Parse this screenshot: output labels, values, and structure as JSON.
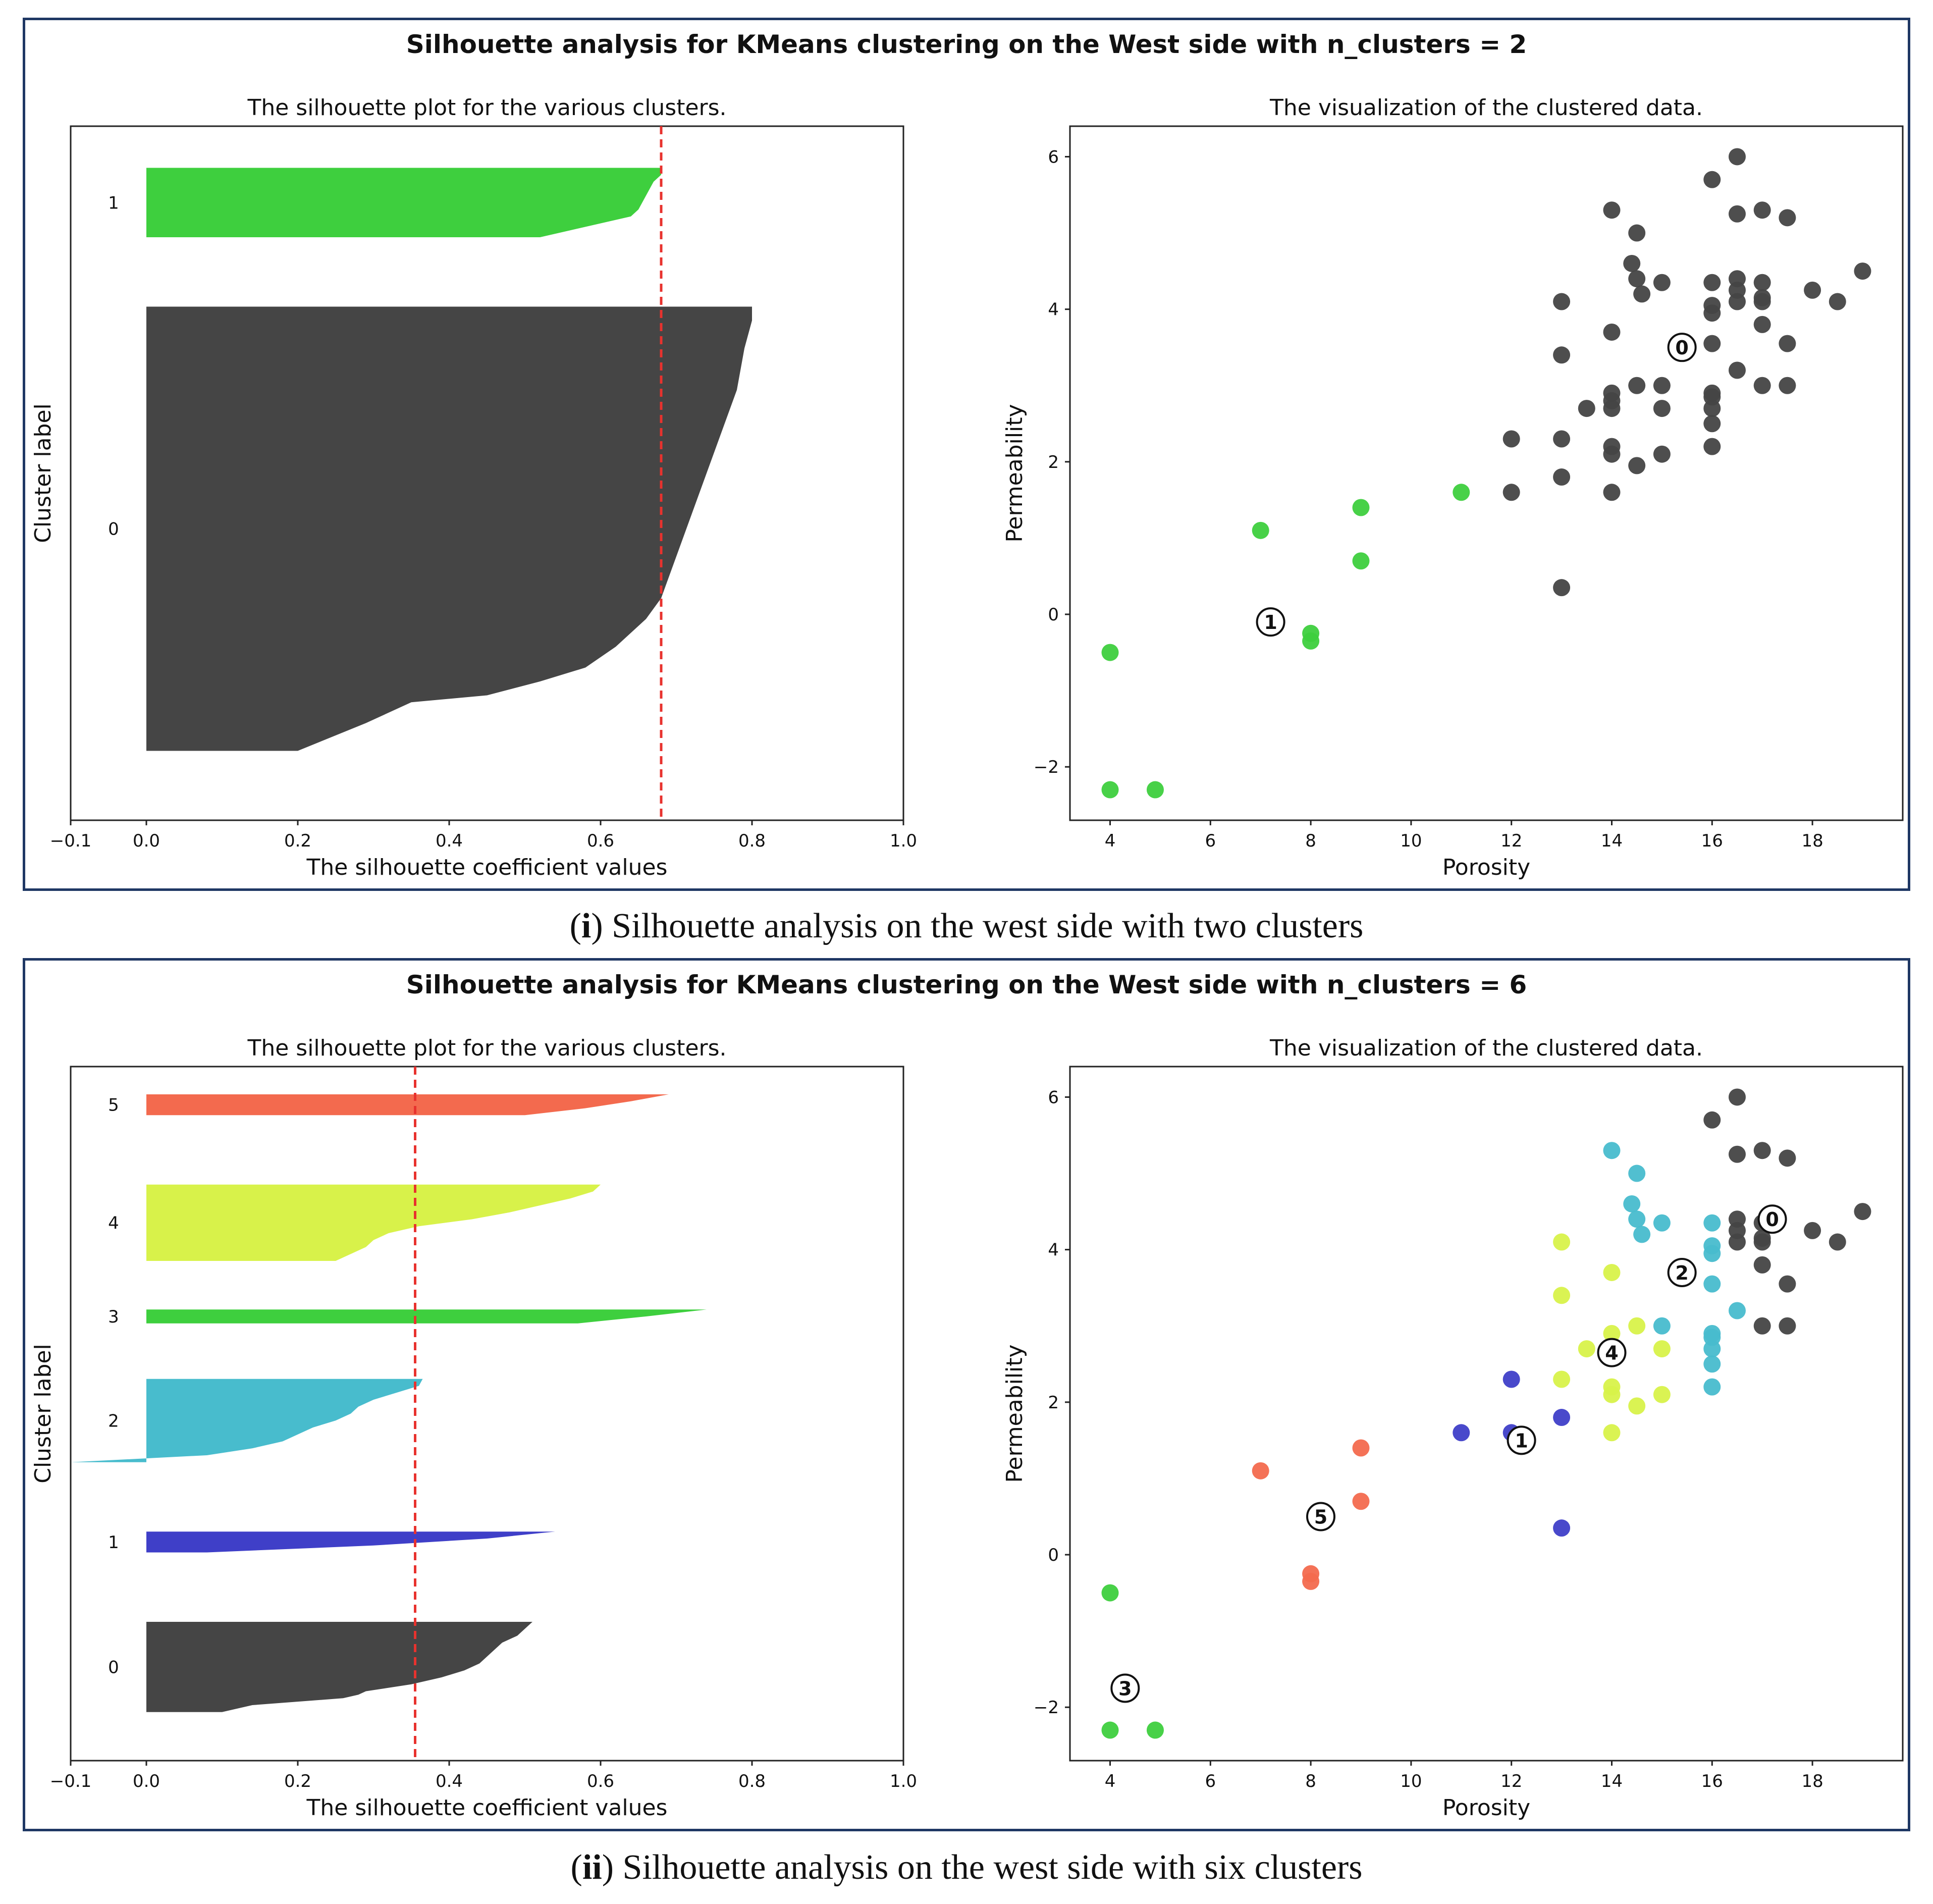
{
  "colors": {
    "c0": "#454545",
    "c1_two": "#3ecf3e",
    "c1_six": "#3f3fc8",
    "c2": "#48bccd",
    "c3": "#3ecf3e",
    "c4": "#d8f24a",
    "c5": "#f36a4e",
    "avg_line": "#e8322e",
    "frame": "#1f3864"
  },
  "captions": [
    {
      "label": "i",
      "text": " Silhouette analysis on the west side with two clusters"
    },
    {
      "label": "ii",
      "text": " Silhouette analysis on the west side with six clusters"
    }
  ],
  "chart_data": [
    {
      "type": "silhouette",
      "title": "Silhouette analysis for KMeans clustering on the West side with n_clusters = 2",
      "subtitle": "The silhouette plot for the various clusters.",
      "xlabel": "The silhouette coefficient values",
      "ylabel": "Cluster label",
      "xlim": [
        -0.1,
        1.0
      ],
      "xticks": [
        "−0.1",
        "0.0",
        "0.2",
        "0.4",
        "0.6",
        "0.8",
        "1.0"
      ],
      "xtick_values": [
        -0.1,
        0.0,
        0.2,
        0.4,
        0.6,
        0.8,
        1.0
      ],
      "average_score": 0.68,
      "clusters": [
        {
          "label": "0",
          "color": "c0",
          "y_range": [
            10,
            74
          ],
          "profile": [
            [
              10,
              0.2
            ],
            [
              14,
              0.29
            ],
            [
              17,
              0.35
            ],
            [
              18,
              0.45
            ],
            [
              20,
              0.52
            ],
            [
              22,
              0.58
            ],
            [
              25,
              0.62
            ],
            [
              29,
              0.66
            ],
            [
              32,
              0.68
            ],
            [
              38,
              0.7
            ],
            [
              44,
              0.72
            ],
            [
              50,
              0.74
            ],
            [
              56,
              0.76
            ],
            [
              62,
              0.78
            ],
            [
              68,
              0.79
            ],
            [
              72,
              0.8
            ],
            [
              74,
              0.8
            ]
          ]
        },
        {
          "label": "1",
          "color": "c1_two",
          "y_range": [
            84,
            94
          ],
          "profile": [
            [
              84,
              0.52
            ],
            [
              85,
              0.56
            ],
            [
              86,
              0.6
            ],
            [
              87,
              0.64
            ],
            [
              88,
              0.65
            ],
            [
              90,
              0.66
            ],
            [
              92,
              0.67
            ],
            [
              93,
              0.68
            ],
            [
              94,
              0.68
            ]
          ]
        }
      ]
    },
    {
      "type": "scatter",
      "title": "",
      "subtitle": "The visualization of the clustered data.",
      "xlabel": "Porosity",
      "ylabel": "Permeability",
      "xlim": [
        3.2,
        19.8
      ],
      "ylim": [
        -2.7,
        6.4
      ],
      "xticks": [
        "4",
        "6",
        "8",
        "10",
        "12",
        "14",
        "16",
        "18"
      ],
      "xtick_values": [
        4,
        6,
        8,
        10,
        12,
        14,
        16,
        18
      ],
      "yticks": [
        "−2",
        "0",
        "2",
        "4",
        "6"
      ],
      "ytick_values": [
        -2,
        0,
        2,
        4,
        6
      ],
      "centers": [
        {
          "label": "0",
          "x": 15.4,
          "y": 3.5
        },
        {
          "label": "1",
          "x": 7.2,
          "y": -0.1
        }
      ],
      "series": [
        {
          "name": "0",
          "color": "c0",
          "points": [
            [
              12,
              2.3
            ],
            [
              12,
              1.6
            ],
            [
              13,
              4.1
            ],
            [
              13,
              3.4
            ],
            [
              13,
              2.3
            ],
            [
              13,
              1.8
            ],
            [
              13,
              0.35
            ],
            [
              13.5,
              2.7
            ],
            [
              14,
              5.3
            ],
            [
              14,
              3.7
            ],
            [
              14,
              2.9
            ],
            [
              14,
              2.8
            ],
            [
              14,
              2.7
            ],
            [
              14,
              2.2
            ],
            [
              14,
              2.1
            ],
            [
              14,
              1.6
            ],
            [
              14.4,
              4.6
            ],
            [
              14.5,
              4.4
            ],
            [
              14.5,
              5.0
            ],
            [
              14.5,
              3.0
            ],
            [
              14.5,
              1.95
            ],
            [
              14.6,
              4.2
            ],
            [
              15,
              4.35
            ],
            [
              15,
              3.0
            ],
            [
              15,
              2.7
            ],
            [
              15,
              2.1
            ],
            [
              16,
              5.7
            ],
            [
              16,
              4.35
            ],
            [
              16,
              4.05
            ],
            [
              16,
              3.95
            ],
            [
              16,
              3.55
            ],
            [
              16,
              2.9
            ],
            [
              16,
              2.85
            ],
            [
              16,
              2.7
            ],
            [
              16,
              2.5
            ],
            [
              16,
              2.2
            ],
            [
              16.5,
              6.0
            ],
            [
              16.5,
              5.25
            ],
            [
              16.5,
              4.4
            ],
            [
              16.5,
              4.25
            ],
            [
              16.5,
              4.1
            ],
            [
              16.5,
              3.2
            ],
            [
              17,
              5.3
            ],
            [
              17,
              4.35
            ],
            [
              17,
              4.15
            ],
            [
              17,
              4.1
            ],
            [
              17,
              3.8
            ],
            [
              17,
              3.0
            ],
            [
              17.5,
              5.2
            ],
            [
              17.5,
              3.55
            ],
            [
              17.5,
              3.0
            ],
            [
              18,
              4.25
            ],
            [
              18.5,
              4.1
            ],
            [
              19,
              4.5
            ]
          ]
        },
        {
          "name": "1",
          "color": "c1_two",
          "points": [
            [
              4,
              -0.5
            ],
            [
              4,
              -2.3
            ],
            [
              4.9,
              -2.3
            ],
            [
              7,
              1.1
            ],
            [
              8,
              -0.25
            ],
            [
              8,
              -0.35
            ],
            [
              9,
              1.4
            ],
            [
              9,
              0.7
            ],
            [
              11,
              1.6
            ]
          ]
        }
      ]
    },
    {
      "type": "silhouette",
      "title": "Silhouette analysis for KMeans clustering on the West side with n_clusters = 6",
      "subtitle": "The silhouette plot for the various clusters.",
      "xlabel": "The silhouette coefficient values",
      "ylabel": "Cluster label",
      "xlim": [
        -0.1,
        1.0
      ],
      "xticks": [
        "−0.1",
        "0.0",
        "0.2",
        "0.4",
        "0.6",
        "0.8",
        "1.0"
      ],
      "xtick_values": [
        -0.1,
        0.0,
        0.2,
        0.4,
        0.6,
        0.8,
        1.0
      ],
      "average_score": 0.355,
      "clusters": [
        {
          "label": "0",
          "color": "c0",
          "y_range": [
            7,
            20
          ],
          "profile": [
            [
              7,
              0.1
            ],
            [
              8,
              0.14
            ],
            [
              9,
              0.26
            ],
            [
              9.5,
              0.28
            ],
            [
              10,
              0.29
            ],
            [
              11,
              0.35
            ],
            [
              12,
              0.39
            ],
            [
              13,
              0.42
            ],
            [
              14,
              0.44
            ],
            [
              15,
              0.45
            ],
            [
              16,
              0.46
            ],
            [
              17,
              0.47
            ],
            [
              18,
              0.49
            ],
            [
              19,
              0.5
            ],
            [
              20,
              0.51
            ]
          ]
        },
        {
          "label": "1",
          "color": "c1_six",
          "y_range": [
            30,
            33
          ],
          "profile": [
            [
              30,
              0.08
            ],
            [
              31,
              0.3
            ],
            [
              32,
              0.45
            ],
            [
              33,
              0.54
            ]
          ]
        },
        {
          "label": "2",
          "color": "c2",
          "y_range": [
            43,
            55
          ],
          "profile": [
            [
              43,
              -0.1
            ],
            [
              44,
              0.08
            ],
            [
              45,
              0.14
            ],
            [
              46,
              0.18
            ],
            [
              47,
              0.2
            ],
            [
              48,
              0.22
            ],
            [
              49,
              0.25
            ],
            [
              50,
              0.27
            ],
            [
              51,
              0.28
            ],
            [
              52,
              0.3
            ],
            [
              53,
              0.33
            ],
            [
              54,
              0.36
            ],
            [
              55,
              0.365
            ]
          ]
        },
        {
          "label": "3",
          "color": "c3",
          "y_range": [
            63,
            65
          ],
          "profile": [
            [
              63,
              0.57
            ],
            [
              64,
              0.66
            ],
            [
              65,
              0.74
            ]
          ]
        },
        {
          "label": "4",
          "color": "c4",
          "y_range": [
            72,
            83
          ],
          "profile": [
            [
              72,
              0.25
            ],
            [
              73,
              0.27
            ],
            [
              74,
              0.29
            ],
            [
              75,
              0.3
            ],
            [
              76,
              0.32
            ],
            [
              77,
              0.36
            ],
            [
              78,
              0.43
            ],
            [
              79,
              0.48
            ],
            [
              80,
              0.52
            ],
            [
              81,
              0.56
            ],
            [
              82,
              0.59
            ],
            [
              83,
              0.6
            ]
          ]
        },
        {
          "label": "5",
          "color": "c5",
          "y_range": [
            93,
            96
          ],
          "profile": [
            [
              93,
              0.5
            ],
            [
              94,
              0.58
            ],
            [
              95,
              0.64
            ],
            [
              96,
              0.69
            ]
          ]
        }
      ]
    },
    {
      "type": "scatter",
      "title": "",
      "subtitle": "The visualization of the clustered data.",
      "xlabel": "Porosity",
      "ylabel": "Permeability",
      "xlim": [
        3.2,
        19.8
      ],
      "ylim": [
        -2.7,
        6.4
      ],
      "xticks": [
        "4",
        "6",
        "8",
        "10",
        "12",
        "14",
        "16",
        "18"
      ],
      "xtick_values": [
        4,
        6,
        8,
        10,
        12,
        14,
        16,
        18
      ],
      "yticks": [
        "−2",
        "0",
        "2",
        "4",
        "6"
      ],
      "ytick_values": [
        -2,
        0,
        2,
        4,
        6
      ],
      "centers": [
        {
          "label": "0",
          "x": 17.2,
          "y": 4.4
        },
        {
          "label": "2",
          "x": 15.4,
          "y": 3.7
        },
        {
          "label": "4",
          "x": 14.0,
          "y": 2.65
        },
        {
          "label": "1",
          "x": 12.2,
          "y": 1.5
        },
        {
          "label": "5",
          "x": 8.2,
          "y": 0.5
        },
        {
          "label": "3",
          "x": 4.3,
          "y": -1.75
        }
      ],
      "series": [
        {
          "name": "0",
          "color": "c0",
          "points": [
            [
              16,
              5.7
            ],
            [
              16.5,
              6.0
            ],
            [
              16.5,
              5.25
            ],
            [
              17,
              5.3
            ],
            [
              17.5,
              5.2
            ],
            [
              16.5,
              4.4
            ],
            [
              16.5,
              4.25
            ],
            [
              16.5,
              4.1
            ],
            [
              17,
              4.35
            ],
            [
              17,
              4.15
            ],
            [
              17,
              4.1
            ],
            [
              17,
              3.8
            ],
            [
              17,
              3.0
            ],
            [
              17.5,
              3.55
            ],
            [
              17.5,
              3.0
            ],
            [
              18,
              4.25
            ],
            [
              18.5,
              4.1
            ],
            [
              19,
              4.5
            ]
          ]
        },
        {
          "name": "1",
          "color": "c1_six",
          "points": [
            [
              11,
              1.6
            ],
            [
              12,
              2.3
            ],
            [
              12,
              1.6
            ],
            [
              13,
              1.8
            ],
            [
              13,
              0.35
            ]
          ]
        },
        {
          "name": "2",
          "color": "c2",
          "points": [
            [
              14,
              5.3
            ],
            [
              14.5,
              5.0
            ],
            [
              14.4,
              4.6
            ],
            [
              14.5,
              4.4
            ],
            [
              14.6,
              4.2
            ],
            [
              15,
              4.35
            ],
            [
              15,
              3.0
            ],
            [
              16,
              4.35
            ],
            [
              16,
              4.05
            ],
            [
              16,
              3.95
            ],
            [
              16,
              3.55
            ],
            [
              16,
              2.9
            ],
            [
              16,
              2.85
            ],
            [
              16,
              2.7
            ],
            [
              16,
              2.5
            ],
            [
              16,
              2.2
            ],
            [
              16.5,
              3.2
            ]
          ]
        },
        {
          "name": "3",
          "color": "c3",
          "points": [
            [
              4,
              -0.5
            ],
            [
              4,
              -2.3
            ],
            [
              4.9,
              -2.3
            ]
          ]
        },
        {
          "name": "4",
          "color": "c4",
          "points": [
            [
              13,
              4.1
            ],
            [
              13,
              3.4
            ],
            [
              13,
              2.3
            ],
            [
              13.5,
              2.7
            ],
            [
              14,
              3.7
            ],
            [
              14,
              2.9
            ],
            [
              14,
              2.2
            ],
            [
              14,
              2.1
            ],
            [
              14,
              1.6
            ],
            [
              14.5,
              3.0
            ],
            [
              14.5,
              1.95
            ],
            [
              15,
              2.7
            ],
            [
              15,
              2.1
            ]
          ]
        },
        {
          "name": "5",
          "color": "c5",
          "points": [
            [
              7,
              1.1
            ],
            [
              8,
              -0.25
            ],
            [
              8,
              -0.35
            ],
            [
              9,
              1.4
            ],
            [
              9,
              0.7
            ]
          ]
        }
      ]
    }
  ]
}
